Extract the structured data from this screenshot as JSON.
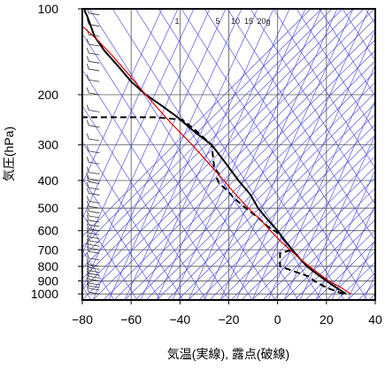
{
  "chart_data": {
    "type": "line",
    "xlabel": "気温(実線), 露点(破線)",
    "ylabel": "気圧(hPa)",
    "xlim": [
      -80,
      40
    ],
    "ylim": [
      1050,
      100
    ],
    "y_scale": "log",
    "x_ticks": [
      -80,
      -60,
      -40,
      -20,
      0,
      20,
      40
    ],
    "x_tick_labels": [
      "−80",
      "−60",
      "−40",
      "−20",
      "0",
      "20",
      "40"
    ],
    "y_ticks": [
      100,
      200,
      300,
      400,
      500,
      600,
      700,
      800,
      900,
      1000
    ],
    "y_tick_labels": [
      "100",
      "200",
      "300",
      "400",
      "500",
      "600",
      "700",
      "800",
      "900",
      "1000"
    ],
    "mixing_ratio_labels": [
      "1",
      "5",
      "10",
      "15",
      "20g"
    ],
    "grid": true,
    "colors": {
      "temperature": "#000000",
      "dewpoint": "#000000",
      "parcel": "#e00000",
      "isotherms": "#3c3cdc",
      "adiabats": "#3c3cdc",
      "frame": "#000000"
    },
    "series": [
      {
        "style": "solid",
        "points": [
          [
            28,
            1000
          ],
          [
            24,
            950
          ],
          [
            20,
            900
          ],
          [
            16,
            850
          ],
          [
            12,
            800
          ],
          [
            9,
            750
          ],
          [
            6,
            700
          ],
          [
            3,
            650
          ],
          [
            0,
            600
          ],
          [
            -4,
            550
          ],
          [
            -8,
            500
          ],
          [
            -11,
            450
          ],
          [
            -16,
            400
          ],
          [
            -21,
            350
          ],
          [
            -27,
            300
          ],
          [
            -34,
            270
          ],
          [
            -41,
            240
          ],
          [
            -47,
            220
          ],
          [
            -54,
            200
          ],
          [
            -60,
            180
          ],
          [
            -65,
            160
          ],
          [
            -71,
            140
          ],
          [
            -75,
            125
          ],
          [
            -77,
            112
          ],
          [
            -78,
            106
          ],
          [
            -79,
            102
          ],
          [
            -79,
            100
          ]
        ]
      },
      {
        "style": "dashed",
        "points": [
          [
            27,
            1000
          ],
          [
            20,
            950
          ],
          [
            15,
            900
          ],
          [
            13,
            870
          ],
          [
            8,
            840
          ],
          [
            1,
            800
          ],
          [
            1,
            720
          ],
          [
            6,
            700
          ],
          [
            3,
            650
          ],
          [
            0,
            610
          ],
          [
            -4,
            580
          ],
          [
            -8,
            540
          ],
          [
            -13,
            500
          ],
          [
            -18,
            460
          ],
          [
            -21,
            430
          ],
          [
            -24,
            410
          ],
          [
            -25,
            390
          ],
          [
            -24,
            380
          ],
          [
            -26,
            360
          ],
          [
            -27,
            300
          ],
          [
            -34,
            265
          ],
          [
            -39,
            245
          ],
          [
            -50,
            240
          ],
          [
            -81,
            240
          ]
        ]
      },
      {
        "style": "solid",
        "points": [
          [
            30,
            1000
          ],
          [
            26,
            950
          ],
          [
            21,
            900
          ],
          [
            17,
            850
          ],
          [
            13,
            800
          ],
          [
            9,
            750
          ],
          [
            5,
            700
          ],
          [
            1,
            650
          ],
          [
            -3,
            600
          ],
          [
            -7,
            550
          ],
          [
            -12,
            500
          ],
          [
            -17,
            450
          ],
          [
            -22,
            400
          ],
          [
            -28,
            350
          ],
          [
            -35,
            300
          ],
          [
            -44,
            250
          ],
          [
            -54,
            200
          ],
          [
            -61,
            170
          ],
          [
            -68,
            145
          ],
          [
            -74,
            128
          ],
          [
            -80,
            115
          ]
        ]
      }
    ]
  }
}
